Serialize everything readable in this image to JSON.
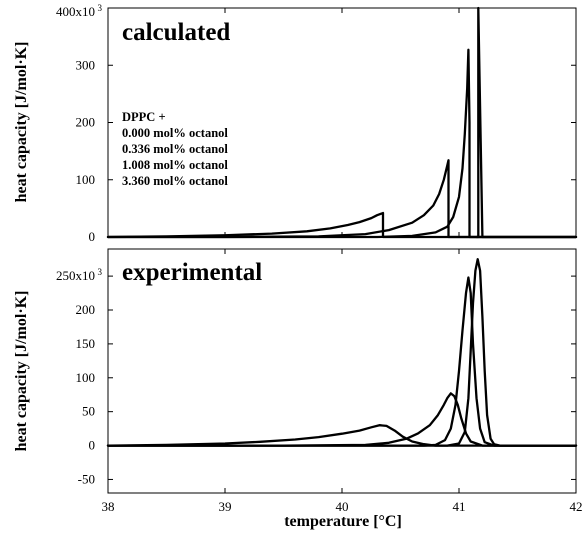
{
  "chart_data": {
    "type": "line",
    "xlabel": "temperature [°C]",
    "xlim": [
      38,
      42
    ],
    "xticks": [
      "38",
      "39",
      "40",
      "41",
      "42"
    ],
    "panels": [
      {
        "title": "calculated",
        "ylabel": "heat capacity [J/mol·K]",
        "ylim": [
          0,
          400000
        ],
        "ytick_values": [
          0,
          100000,
          200000,
          300000,
          400000
        ],
        "yticks": [
          "0",
          "100",
          "200",
          "300",
          "400x10"
        ],
        "ytick_top_exponent": "3",
        "legend_title": "DPPC +",
        "legend": [
          "0.000 mol% octanol",
          "0.336 mol% octanol",
          "1.008 mol% octanol",
          "3.360 mol% octanol"
        ],
        "series": [
          {
            "x": [
              41.15,
              41.15,
              41.15,
              41.15,
              41.16,
              41.16,
              41.16,
              41.16,
              41.165,
              41.165,
              41.2,
              42.0
            ],
            "y": [
              0,
              0,
              0,
              0,
              0,
              0,
              0,
              0,
              0,
              400000,
              0,
              0
            ]
          },
          {
            "x": [
              38.0,
              39.5,
              40.3,
              40.6,
              40.8,
              40.9,
              40.95,
              41.0,
              41.03,
              41.05,
              41.07,
              41.08,
              41.09,
              41.09,
              41.1,
              42.0
            ],
            "y": [
              0,
              0,
              0,
              2000,
              8000,
              18000,
              35000,
              70000,
              120000,
              180000,
              260000,
              327000,
              200000,
              0,
              0,
              0
            ]
          },
          {
            "x": [
              38.0,
              39.0,
              39.8,
              40.2,
              40.4,
              40.6,
              40.7,
              40.78,
              40.83,
              40.87,
              40.9,
              40.91,
              40.91,
              40.95,
              42.0
            ],
            "y": [
              0,
              0,
              1000,
              5000,
              12000,
              25000,
              38000,
              55000,
              75000,
              100000,
              125000,
              134000,
              0,
              0,
              0
            ]
          },
          {
            "x": [
              38.0,
              38.5,
              39.0,
              39.4,
              39.7,
              39.9,
              40.05,
              40.15,
              40.25,
              40.3,
              40.34,
              40.35,
              40.35,
              40.4,
              42.0
            ],
            "y": [
              0,
              1000,
              3000,
              6000,
              10000,
              15000,
              21000,
              26000,
              33000,
              38000,
              41000,
              42000,
              0,
              0,
              0
            ]
          }
        ]
      },
      {
        "title": "experimental",
        "ylabel": "heat capacity [J/mol·K]",
        "ylim": [
          -70000,
          290000
        ],
        "ytick_values": [
          -50000,
          0,
          50000,
          100000,
          150000,
          200000,
          250000
        ],
        "yticks": [
          "-50",
          "0",
          "50",
          "100",
          "150",
          "200",
          "250x10"
        ],
        "ytick_top_exponent": "3",
        "series": [
          {
            "x": [
              38.0,
              40.9,
              41.0,
              41.05,
              41.08,
              41.1,
              41.12,
              41.14,
              41.16,
              41.18,
              41.2,
              41.22,
              41.24,
              41.27,
              41.3,
              41.35,
              42.0
            ],
            "y": [
              0,
              0,
              3000,
              20000,
              70000,
              140000,
              210000,
              258000,
              275000,
              258000,
              190000,
              110000,
              45000,
              10000,
              2000,
              0,
              0
            ]
          },
          {
            "x": [
              38.0,
              40.7,
              40.8,
              40.88,
              40.93,
              40.97,
              41.0,
              41.03,
              41.06,
              41.08,
              41.1,
              41.12,
              41.15,
              41.18,
              41.22,
              41.3,
              42.0
            ],
            "y": [
              0,
              0,
              1000,
              8000,
              25000,
              60000,
              110000,
              170000,
              225000,
              248000,
              225000,
              150000,
              70000,
              25000,
              5000,
              0,
              0
            ]
          },
          {
            "x": [
              38.0,
              39.5,
              40.2,
              40.4,
              40.55,
              40.65,
              40.75,
              40.82,
              40.87,
              40.9,
              40.93,
              40.96,
              40.99,
              41.02,
              41.06,
              41.1,
              41.2,
              42.0
            ],
            "y": [
              0,
              0,
              1000,
              4000,
              10000,
              18000,
              30000,
              45000,
              60000,
              70000,
              77000,
              73000,
              60000,
              40000,
              18000,
              6000,
              0,
              0
            ]
          },
          {
            "x": [
              38.0,
              38.5,
              39.0,
              39.3,
              39.6,
              39.8,
              40.0,
              40.15,
              40.25,
              40.32,
              40.38,
              40.45,
              40.52,
              40.6,
              40.7,
              40.8,
              42.0
            ],
            "y": [
              0,
              1000,
              3000,
              5500,
              9000,
              12500,
              17500,
              22000,
              27000,
              30000,
              29000,
              22000,
              13000,
              6000,
              2000,
              0,
              0
            ]
          }
        ]
      }
    ]
  }
}
